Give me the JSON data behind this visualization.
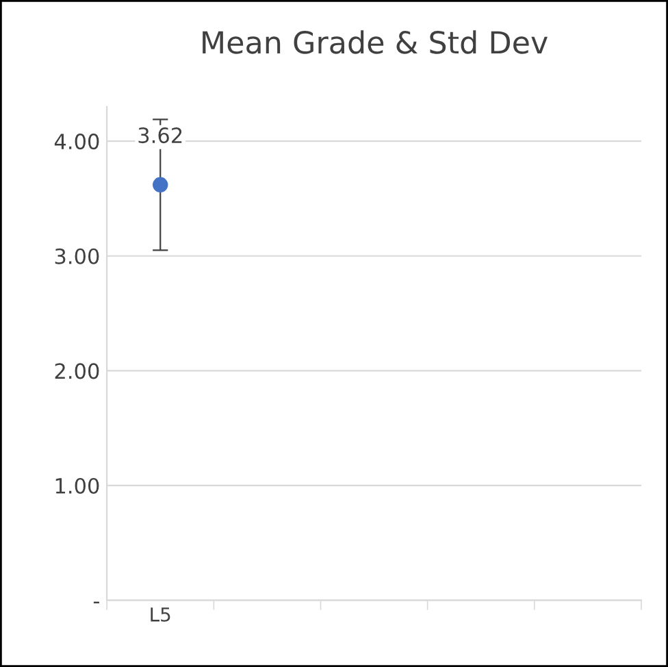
{
  "chart_data": {
    "type": "scatter",
    "title": "Mean Grade & Std Dev",
    "categories": [
      "L5",
      null,
      null,
      null,
      null
    ],
    "values": [
      3.62,
      null,
      null,
      null,
      null
    ],
    "errors": [
      0.57,
      null,
      null,
      null,
      null
    ],
    "color": "#4472c4",
    "marker": "circle",
    "data_labels": true,
    "ylim": [
      0,
      4.3
    ],
    "yticks": [
      {
        "value": 0,
        "label": "-"
      },
      {
        "value": 1,
        "label": "1.00"
      },
      {
        "value": 2,
        "label": "2.00"
      },
      {
        "value": 3,
        "label": "3.00"
      },
      {
        "value": 4,
        "label": "4.00"
      }
    ],
    "grid": "y"
  }
}
